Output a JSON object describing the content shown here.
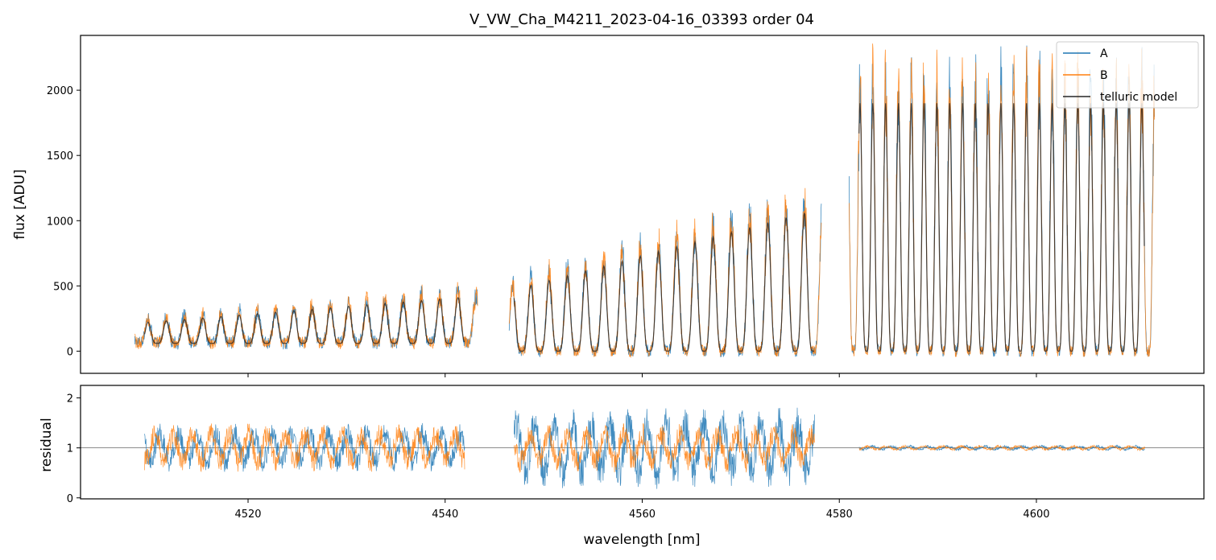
{
  "chart_data": [
    {
      "type": "line",
      "panel": "top",
      "title": "V_VW_Cha_M4211_2023-04-16_03393  order 04",
      "xlabel": "",
      "ylabel": "flux [ADU]",
      "xlim": [
        4503,
        4617
      ],
      "ylim": [
        -170,
        2420
      ],
      "yticks": [
        0,
        500,
        1000,
        1500,
        2000
      ],
      "xticks": [
        4520,
        4540,
        4560,
        4580,
        4600
      ],
      "legend_position": "top-right",
      "series": [
        {
          "name": "A",
          "color": "#1f77b4",
          "segments": [
            [
              4508.5,
              4543.3
            ],
            [
              4546.5,
              4578.2
            ],
            [
              4581.0,
              4612.0
            ]
          ]
        },
        {
          "name": "B",
          "color": "#ff7f0e",
          "segments": [
            [
              4508.5,
              4543.3
            ],
            [
              4546.5,
              4578.2
            ],
            [
              4581.0,
              4612.0
            ]
          ]
        },
        {
          "name": "telluric model",
          "color": "#262626",
          "segments": [
            [
              4509.5,
              4542.0
            ],
            [
              4547.0,
              4577.5
            ],
            [
              4582.0,
              4611.0
            ]
          ]
        }
      ]
    },
    {
      "type": "line",
      "panel": "bottom",
      "xlabel": "wavelength [nm]",
      "ylabel": "residual",
      "xlim": [
        4503,
        4617
      ],
      "ylim": [
        -0.02,
        2.25
      ],
      "yticks": [
        0,
        1,
        2
      ],
      "xticks": [
        4520,
        4540,
        4560,
        4580,
        4600
      ],
      "reference_line": 1,
      "series": [
        {
          "name": "A",
          "color": "#1f77b4",
          "segments": [
            [
              4509.5,
              4542.0
            ],
            [
              4547.0,
              4577.5
            ],
            [
              4582.0,
              4611.0
            ]
          ]
        },
        {
          "name": "B",
          "color": "#ff7f0e",
          "segments": [
            [
              4509.5,
              4542.0
            ],
            [
              4547.0,
              4577.5
            ],
            [
              4582.0,
              4611.0
            ]
          ]
        }
      ]
    }
  ]
}
